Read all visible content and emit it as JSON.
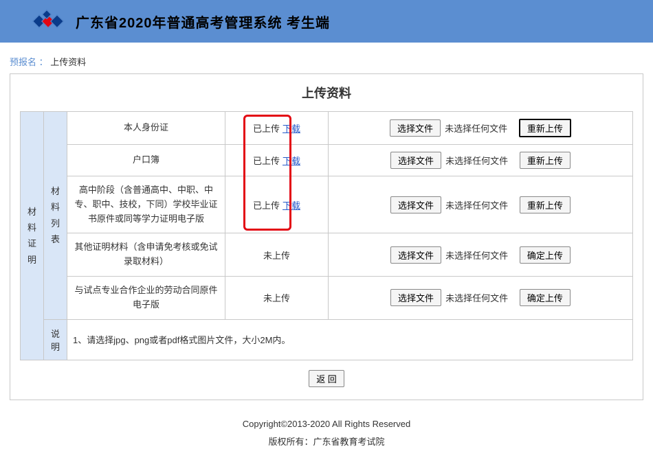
{
  "header": {
    "title": "广东省2020年普通高考管理系统  考生端"
  },
  "breadcrumb": {
    "section": "预报名",
    "sep": " ：",
    "current": "上传资料"
  },
  "page": {
    "title": "上传资料"
  },
  "sideLabels": {
    "outer": "材料证明",
    "inner": "材料列表"
  },
  "columns": {
    "chooseFile": "选择文件",
    "noFile": "未选择任何文件"
  },
  "statusText": {
    "uploaded": "已上传",
    "notUploaded": "未上传",
    "download": "下载"
  },
  "actions": {
    "reupload": "重新上传",
    "confirmUpload": "确定上传"
  },
  "rows": [
    {
      "name": "本人身份证",
      "uploaded": true,
      "action": "reupload",
      "bold": true
    },
    {
      "name": "户口簿",
      "uploaded": true,
      "action": "reupload",
      "bold": false
    },
    {
      "name": "高中阶段（含普通高中、中职、中专、职中、技校，下同）学校毕业证书原件或同等学力证明电子版",
      "uploaded": true,
      "action": "reupload",
      "bold": false
    },
    {
      "name": "其他证明材料（含申请免考核或免试录取材料）",
      "uploaded": false,
      "action": "confirmUpload",
      "bold": false
    },
    {
      "name": "与试点专业合作企业的劳动合同原件电子版",
      "uploaded": false,
      "action": "confirmUpload",
      "bold": false
    }
  ],
  "note": {
    "label": "说明",
    "text": "1、请选择jpg、png或者pdf格式图片文件，大小2M内。"
  },
  "back": "返  回",
  "footer": {
    "line1": "Copyright©2013-2020   All Rights Reserved",
    "line2": "版权所有：广东省教育考试院"
  },
  "colors": {
    "headerBg": "#5b8ed1",
    "sideBg": "#d9e6f7",
    "border": "#c8c8c8",
    "link": "#2358c9",
    "redBox": "#e30613"
  }
}
